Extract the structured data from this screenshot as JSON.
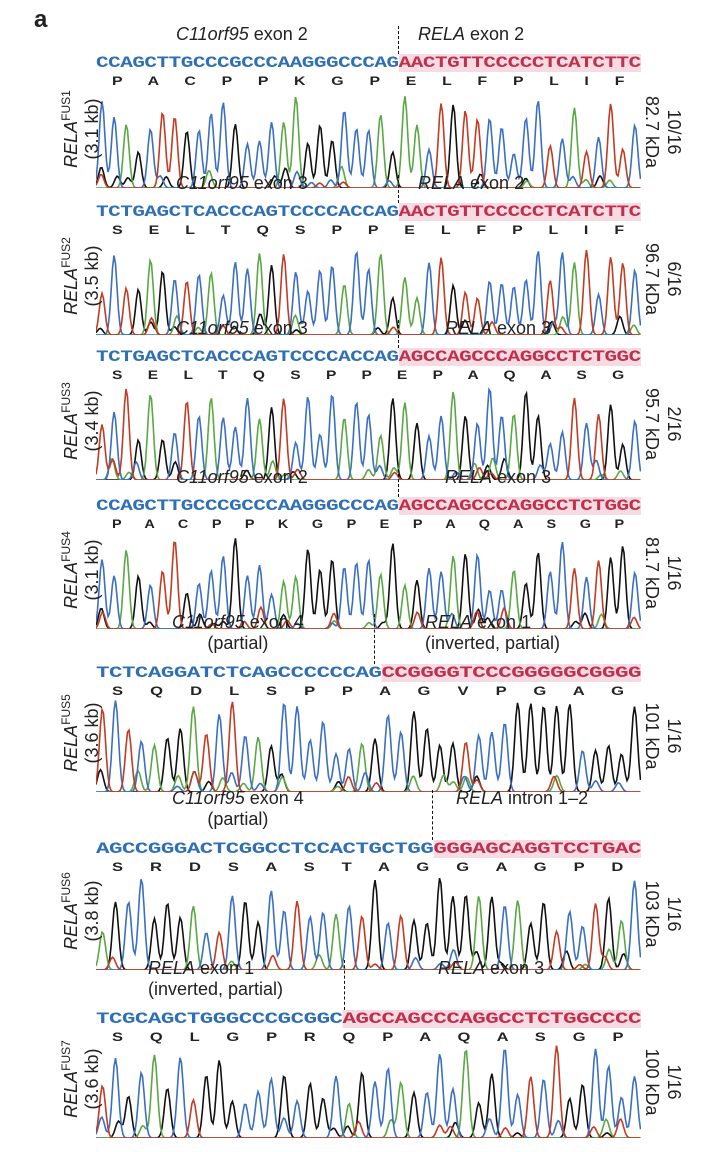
{
  "panel_letter": "a",
  "panels": [
    {
      "fusion": "FUS1",
      "name": "RELA",
      "size": "(3.1 kb)",
      "mw": "82.7 kDa",
      "freq": "10/16",
      "left_gene": "C11orf95",
      "left_region": "exon 2",
      "left_sub": "",
      "right_gene": "RELA",
      "right_region": "exon 2",
      "right_sub": "",
      "seq_left": "CCAGCTTGCCCGCCCAAGGGCCCAG",
      "seq_right": "AACTGTTCCCCCTCATCTTC",
      "aa": "P   A   C   P   P   K   G   P   E   L   F   P   L   I   F"
    },
    {
      "fusion": "FUS2",
      "name": "RELA",
      "size": "(3.5 kb)",
      "mw": "96.7 kDa",
      "freq": "6/16",
      "left_gene": "C11orf95",
      "left_region": "exon 3",
      "left_sub": "",
      "right_gene": "RELA",
      "right_region": "exon 2",
      "right_sub": "",
      "seq_left": "TCTGAGCTCACCCAGTCCCCACCAG",
      "seq_right": "AACTGTTCCCCCTCATCTTC",
      "aa": "S   E   L   T   Q   S   P   P   E   L   F   P   L   I   F"
    },
    {
      "fusion": "FUS3",
      "name": "RELA",
      "size": "(3.4 kb)",
      "mw": "95.7 kDa",
      "freq": "2/16",
      "left_gene": "C11orf95",
      "left_region": "exon 3",
      "left_sub": "",
      "right_gene": "RELA",
      "right_region": "exon 3",
      "right_sub": "",
      "seq_left": "TCTGAGCTCACCCAGTCCCCACCAG",
      "seq_right": "AGCCAGCCCAGGCCTCTGGC",
      "aa": "S   E   L   T   Q   S   P   P   E   P   A   Q   A   S   G"
    },
    {
      "fusion": "FUS4",
      "name": "RELA",
      "size": "(3.1 kb)",
      "mw": "81.7 kDa",
      "freq": "1/16",
      "left_gene": "C11orf95",
      "left_region": "exon 2",
      "left_sub": "",
      "right_gene": "RELA",
      "right_region": "exon 3",
      "right_sub": "",
      "seq_left": "CCAGCTTGCCCGCCCAAGGGCCCAG",
      "seq_right": "AGCCAGCCCAGGCCTCTGGC",
      "aa": "P   A   C   P   P   K   G   P   E   P   A   Q   A   S   G   P"
    },
    {
      "fusion": "FUS5",
      "name": "RELA",
      "size": "(3.6 kb)",
      "mw": "101 kDa",
      "freq": "1/16",
      "left_gene": "C11orf95",
      "left_region": "exon 4",
      "left_sub": "(partial)",
      "right_gene": "RELA",
      "right_region": "exon 1",
      "right_sub": "(inverted, partial)",
      "seq_left": "TCTCAGGATCTCAGCCCCCCAG",
      "seq_right": "CCGGGGTCCCGGGGGCGGGG",
      "aa": "S   Q   D   L   S   P   P   A   G   V   P   G   A   G"
    },
    {
      "fusion": "FUS6",
      "name": "RELA",
      "size": "(3.8 kb)",
      "mw": "103 kDa",
      "freq": "1/16",
      "left_gene": "C11orf95",
      "left_region": "exon 4",
      "left_sub": "(partial)",
      "right_gene": "RELA",
      "right_region": "intron 1–2",
      "right_sub": "",
      "seq_left": "AGCCGGGACTCGGCCTCCACTGCTGG",
      "seq_right": "GGGAGCAGGTCCTGAC",
      "aa": "S   R   D   S   A   S   T   A   G   G   A   G   P   D"
    },
    {
      "fusion": "FUS7",
      "name": "RELA",
      "size": "(3.6 kb)",
      "mw": "100 kDa",
      "freq": "1/16",
      "left_gene": "RELA",
      "left_region": "exon 1",
      "left_sub": "(inverted, partial)",
      "right_gene": "RELA",
      "right_region": "exon 3",
      "right_sub": "",
      "seq_left": "TCGCAGCTGGGCCCGCGGC",
      "seq_right": "AGCCAGCCCAGGCCTCTGGCCCC",
      "aa": "S   Q   L   G   P   R   Q   P   A   Q   A   S   G   P"
    }
  ],
  "trace_colors": {
    "A": "#5aa844",
    "C": "#3a6fc4",
    "G": "#111111",
    "T": "#c23b22"
  }
}
